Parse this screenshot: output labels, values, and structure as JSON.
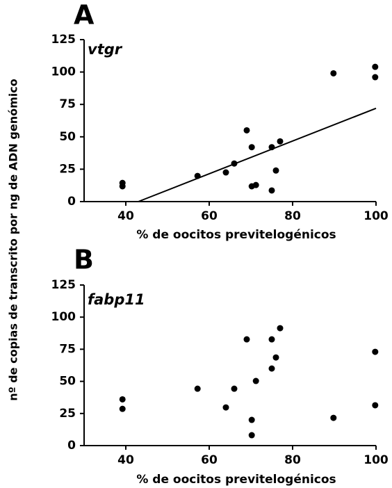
{
  "chart_data": [
    {
      "type": "scatter",
      "title": "A",
      "subtitle": "vtgr",
      "xlabel": "% de oocitos previtelogénicos",
      "ylabel": "nº de copias de transcrito por ng de ADN genómico",
      "color": "#000000",
      "x": [
        39.2,
        39.2,
        57.2,
        64,
        66,
        69,
        70.2,
        70.2,
        71.2,
        75,
        75,
        76,
        77,
        89.8,
        99.8,
        99.8
      ],
      "values": [
        14.4,
        11.8,
        19.8,
        22.5,
        29.4,
        55,
        42,
        11.8,
        12.8,
        42,
        8.6,
        24,
        46.5,
        99,
        104,
        96
      ],
      "fit_line": {
        "x": [
          43,
          100
        ],
        "y": [
          0,
          72
        ]
      },
      "xlim": [
        30,
        100
      ],
      "xticks": [
        40,
        60,
        80,
        100
      ],
      "ylim": [
        0,
        125
      ],
      "yticks": [
        0,
        25,
        50,
        75,
        100,
        125
      ]
    },
    {
      "type": "scatter",
      "title": "B",
      "subtitle": "fabp11",
      "xlabel": "% de oocitos previtelogénicos",
      "color": "#000000",
      "x": [
        39.2,
        39.2,
        57.2,
        64,
        66,
        69,
        70.2,
        70.2,
        71.2,
        75,
        75,
        76,
        77,
        89.8,
        99.8,
        99.8
      ],
      "values": [
        36,
        28.6,
        44.3,
        29.7,
        44.3,
        82.7,
        20,
        8.1,
        50.3,
        82.7,
        60,
        68.6,
        91.4,
        21.6,
        73,
        31.4
      ],
      "xlim": [
        30,
        100
      ],
      "xticks": [
        40,
        60,
        80,
        100
      ],
      "ylim": [
        0,
        125
      ],
      "yticks": [
        0,
        25,
        50,
        75,
        100,
        125
      ]
    }
  ]
}
